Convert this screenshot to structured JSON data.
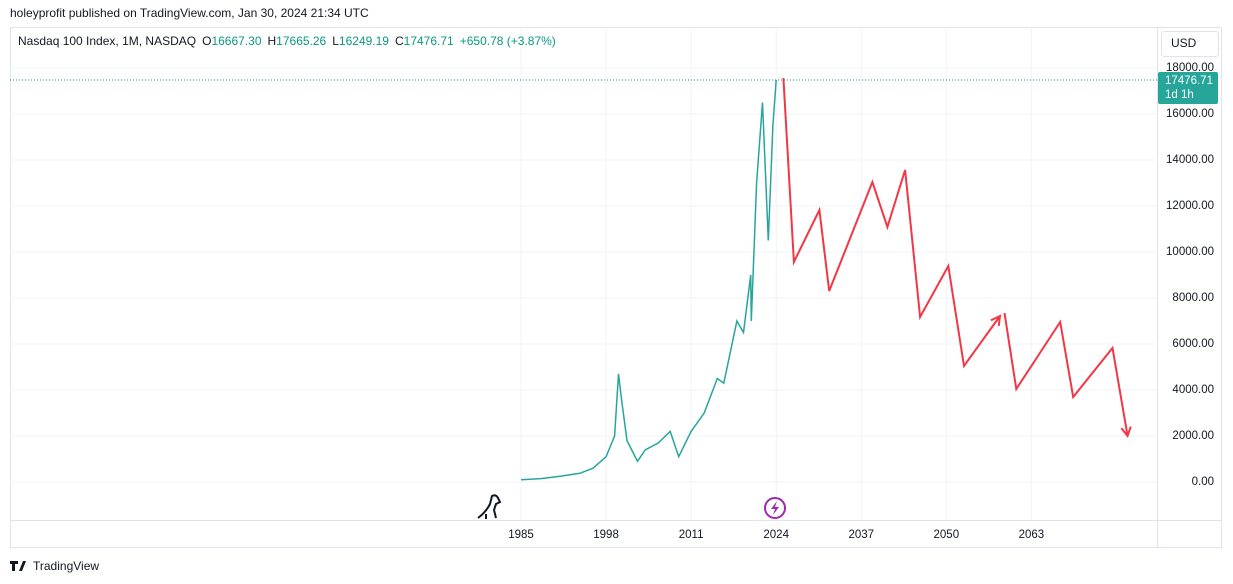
{
  "publisher": "holeyprofit published on TradingView.com, Jan 30, 2024 21:34 UTC",
  "brand": "TradingView",
  "chart_data": {
    "type": "line",
    "title": "Nasdaq 100 Index, 1M, NASDAQ",
    "ohlc": [
      {
        "label": "O",
        "value": "16667.30"
      },
      {
        "label": "H",
        "value": "17665.26"
      },
      {
        "label": "L",
        "value": "16249.19"
      },
      {
        "label": "C",
        "value": "17476.71"
      }
    ],
    "change": "+650.78 (+3.87%)",
    "currency": "USD",
    "last_price": {
      "value": 17476.71,
      "label": "17476.71"
    },
    "countdown": "1d 1h",
    "xlim": [
      1906.9,
      2082.2
    ],
    "xticks": [
      1985,
      1998,
      2011,
      2024,
      2037,
      2050,
      2063
    ],
    "ylim": [
      -1652,
      19783
    ],
    "yticks": [
      {
        "value": 0,
        "label": "0.00"
      },
      {
        "value": 2000,
        "label": "2000.00"
      },
      {
        "value": 4000,
        "label": "4000.00"
      },
      {
        "value": 6000,
        "label": "6000.00"
      },
      {
        "value": 8000,
        "label": "8000.00"
      },
      {
        "value": 10000,
        "label": "10000.00"
      },
      {
        "value": 12000,
        "label": "12000.00"
      },
      {
        "value": 14000,
        "label": "14000.00"
      },
      {
        "value": 16000,
        "label": "16000.00"
      },
      {
        "value": 18000,
        "label": "18000.00"
      }
    ],
    "grid": true,
    "series": [
      {
        "color": "#26a69a",
        "x": [
          1985,
          1988,
          1991,
          1994,
          1996,
          1998,
          1999.3,
          1999.9,
          2000.4,
          2001.2,
          2002.8,
          2004,
          2006,
          2007.8,
          2009.1,
          2011,
          2013,
          2015,
          2016,
          2018,
          2019,
          2020.1,
          2020.2,
          2021,
          2021.9,
          2022.8,
          2023.5,
          2024
        ],
        "values": [
          100,
          150,
          250,
          380,
          600,
          1100,
          2000,
          4700,
          3500,
          1800,
          900,
          1400,
          1700,
          2200,
          1100,
          2200,
          3000,
          4500,
          4300,
          7000,
          6500,
          9000,
          7000,
          13000,
          16500,
          10500,
          15500,
          17476.71
        ]
      },
      {
        "color": "#f23645",
        "x": [
          2025.1,
          2026.7,
          2030.6,
          2032.1,
          2038.7,
          2041.0,
          2043.7,
          2046.0,
          2050.3,
          2052.7,
          2058.2,
          null,
          2058.9,
          2060.7,
          2067.4,
          2069.4,
          2075.4,
          2077.7
        ],
        "values": [
          17565,
          9565,
          11826,
          8304,
          13043,
          11087,
          13565,
          7174,
          9391,
          5043,
          7217,
          null,
          7348,
          4043,
          6957,
          3696,
          5826,
          2000
        ]
      }
    ]
  }
}
